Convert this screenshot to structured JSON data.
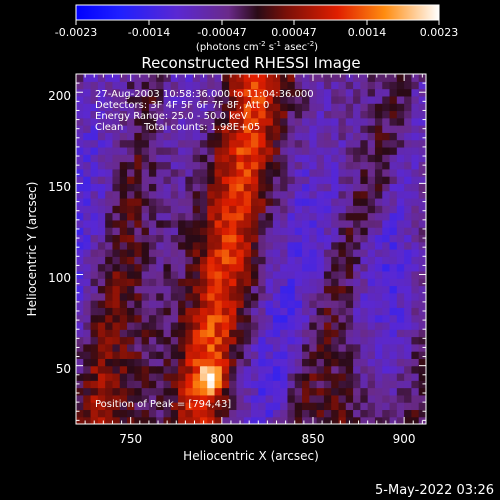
{
  "chart_data": {
    "type": "heatmap",
    "title": "Reconstructed RHESSI Image",
    "xlabel": "Heliocentric X (arcsec)",
    "ylabel": "Heliocentric Y (arcsec)",
    "xlim": [
      720,
      912
    ],
    "ylim": [
      18,
      210
    ],
    "x_ticks": [
      750,
      800,
      850,
      900
    ],
    "y_ticks": [
      50,
      100,
      150,
      200
    ],
    "colorbar": {
      "range": [
        -0.0023,
        0.0023
      ],
      "tick_labels": [
        "-0.0023",
        "-0.0014",
        "-0.00047",
        "0.00047",
        "0.0014",
        "0.0023"
      ],
      "unit_label_prefix": "(photons cm",
      "unit_exp1": "-2",
      "unit_mid": " s",
      "unit_exp2": "-1",
      "unit_mid2": " asec",
      "unit_exp3": "-2",
      "unit_suffix": ")"
    },
    "annotations": {
      "time_range": "27-Aug-2003 10:58:36.000 to 11:04:36.000",
      "detectors": "Detectors: 3F 4F 5F 6F 7F 8F, Att 0",
      "energy_range": "Energy Range: 25.0 - 50.0 keV",
      "method": "Clean",
      "total_counts": "Total counts: 1.98E+05",
      "peak": "Position of Peak = [794,43]"
    },
    "peak_position": [
      794,
      43
    ],
    "grid": false,
    "image_grid": {
      "nx": 48,
      "ny": 48,
      "peak_value": 0.0023,
      "note_structure": "diagonal bright ridges running from lower-left to upper-right; strongest source near (794,43)"
    }
  },
  "footer": {
    "date": "5-May-2022 03:26"
  }
}
